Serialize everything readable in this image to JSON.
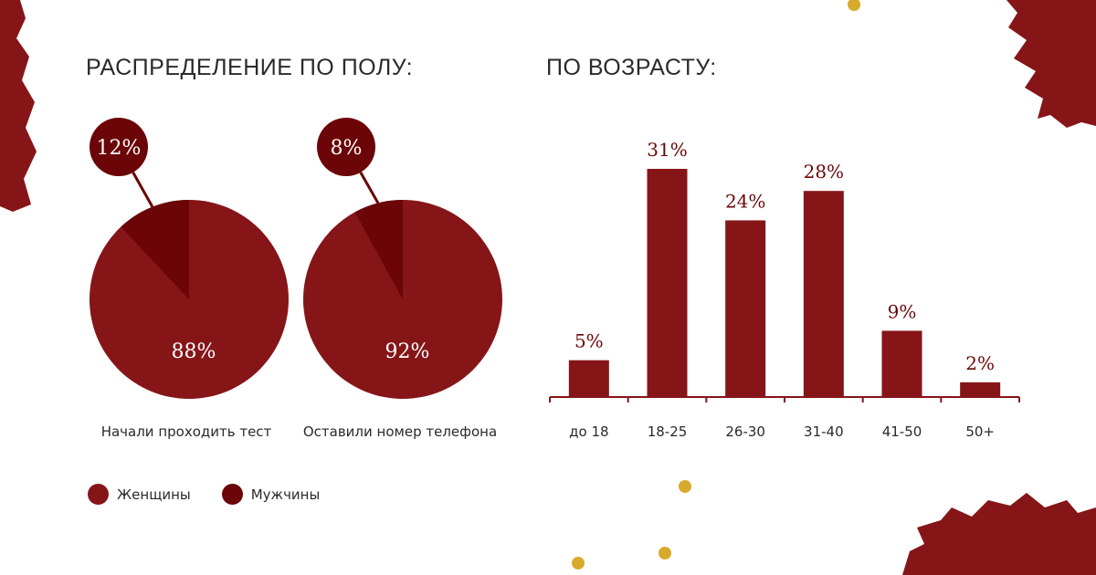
{
  "headings": {
    "gender": "РАСПРЕДЕЛЕНИЕ ПО ПОЛУ:",
    "age": "ПО ВОЗРАСТУ:"
  },
  "legend": [
    {
      "label": "Женщины",
      "color": "#861518"
    },
    {
      "label": "Мужчины",
      "color": "#6b0507"
    }
  ],
  "colors": {
    "women": "#861518",
    "men": "#6b0507",
    "axis": "#861518",
    "text": "#2a2a2a",
    "bar": "#861518"
  },
  "chart_data": [
    {
      "type": "pie",
      "title": "Начали проходить тест",
      "slices": [
        {
          "name": "Женщины",
          "value": 88,
          "label": "88%"
        },
        {
          "name": "Мужчины",
          "value": 12,
          "label": "12%"
        }
      ]
    },
    {
      "type": "pie",
      "title": "Оставили номер телефона",
      "slices": [
        {
          "name": "Женщины",
          "value": 92,
          "label": "92%"
        },
        {
          "name": "Мужчины",
          "value": 8,
          "label": "8%"
        }
      ]
    },
    {
      "type": "bar",
      "categories": [
        "до 18",
        "18-25",
        "26-30",
        "31-40",
        "41-50",
        "50+"
      ],
      "values": [
        5,
        31,
        24,
        28,
        9,
        2
      ],
      "labels": [
        "5%",
        "31%",
        "24%",
        "28%",
        "9%",
        "2%"
      ],
      "ylim": [
        0,
        31
      ],
      "grid": false
    }
  ]
}
